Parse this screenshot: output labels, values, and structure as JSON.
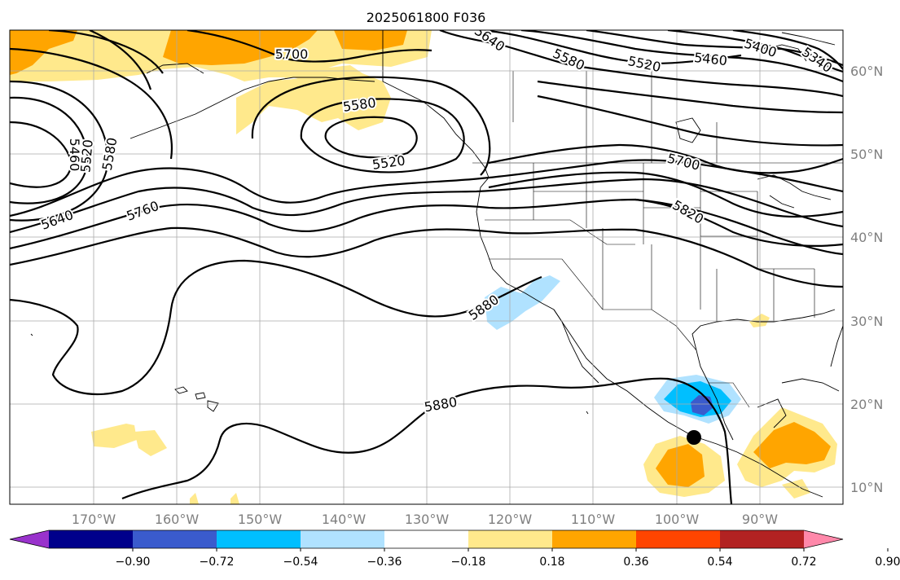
{
  "title": "2025061800 F036",
  "lon_labels": [
    "170°W",
    "160°W",
    "150°W",
    "140°W",
    "130°W",
    "120°W",
    "110°W",
    "100°W",
    "90°W"
  ],
  "lat_labels": [
    "60°N",
    "50°N",
    "40°N",
    "30°N",
    "20°N",
    "10°N"
  ],
  "contour_labels": [
    "5700",
    "5640",
    "5580",
    "5520",
    "5460",
    "5400",
    "5340",
    "5580",
    "5520",
    "5460",
    "5520",
    "5580",
    "5640",
    "5760",
    "5700",
    "5820",
    "5880",
    "5880"
  ],
  "colorbar": {
    "tick_labels": [
      "−0.90",
      "−0.72",
      "−0.54",
      "−0.36",
      "−0.18",
      "0.18",
      "0.36",
      "0.54",
      "0.72",
      "0.90"
    ],
    "colors": [
      "#9932cc",
      "#00008b",
      "#3a5bcd",
      "#00bfff",
      "#b0e2ff",
      "#ffffff",
      "#ffe98c",
      "#ffa500",
      "#ff4500",
      "#b22222",
      "#ff88aa"
    ]
  },
  "marker": {
    "label": "storm-center",
    "color": "#000000"
  }
}
